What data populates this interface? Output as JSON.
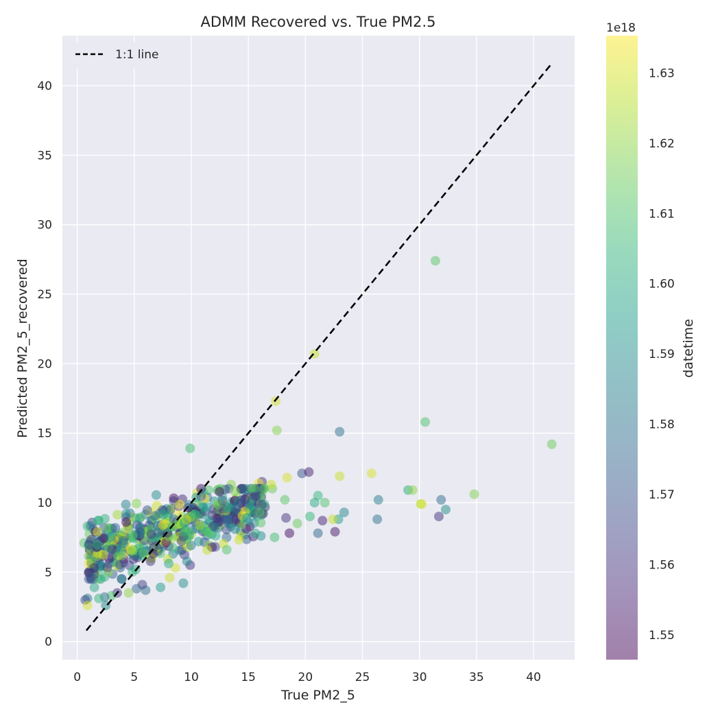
{
  "chart_data": {
    "type": "scatter",
    "title": "ADMM Recovered vs. True PM2.5",
    "xlabel": "True PM2_5",
    "ylabel": "Predicted PM2_5_recovered",
    "xlim": [
      -1.3,
      43.6
    ],
    "ylim": [
      -1.3,
      43.6
    ],
    "xticks": [
      0,
      5,
      10,
      15,
      20,
      25,
      30,
      35,
      40
    ],
    "yticks": [
      0,
      5,
      10,
      15,
      20,
      25,
      30,
      35,
      40
    ],
    "grid": true,
    "legend": {
      "placement": "top-left",
      "entries": [
        "1:1 line"
      ]
    },
    "reference_line": {
      "label": "1:1 line",
      "style": "dashed",
      "color": "#000000",
      "from": [
        0.8,
        0.8
      ],
      "to": [
        41.6,
        41.6
      ]
    },
    "colorbar": {
      "label": "datetime",
      "offset_text": "1e18",
      "min": 1.5465,
      "max": 1.6353,
      "ticks": [
        1.55,
        1.56,
        1.57,
        1.58,
        1.59,
        1.6,
        1.61,
        1.62,
        1.63
      ],
      "tick_labels": [
        "1.55",
        "1.56",
        "1.57",
        "1.58",
        "1.59",
        "1.60",
        "1.61",
        "1.62",
        "1.63"
      ],
      "colormap": "viridis",
      "alpha": 0.5
    },
    "points_note": "Notable individually readable points listed in 'points'; dense cluster summarized in 'cluster'.",
    "points": [
      [
        31.4,
        27.4,
        1.612
      ],
      [
        20.8,
        20.7,
        1.628
      ],
      [
        17.4,
        17.3,
        1.63
      ],
      [
        17.5,
        15.2,
        1.619
      ],
      [
        23.0,
        15.1,
        1.58
      ],
      [
        30.5,
        15.8,
        1.61
      ],
      [
        41.6,
        14.2,
        1.615
      ],
      [
        9.9,
        13.9,
        1.608
      ],
      [
        19.7,
        12.1,
        1.57
      ],
      [
        20.3,
        12.2,
        1.555
      ],
      [
        23.0,
        11.9,
        1.628
      ],
      [
        25.8,
        12.1,
        1.63
      ],
      [
        29.0,
        10.9,
        1.6
      ],
      [
        29.4,
        10.9,
        1.62
      ],
      [
        34.8,
        10.6,
        1.618
      ],
      [
        30.1,
        9.9,
        1.625
      ],
      [
        30.2,
        9.9,
        1.63
      ],
      [
        31.9,
        10.2,
        1.578
      ],
      [
        32.3,
        9.5,
        1.59
      ],
      [
        31.7,
        9.0,
        1.56
      ],
      [
        26.4,
        10.2,
        1.585
      ],
      [
        26.3,
        8.8,
        1.58
      ],
      [
        23.4,
        9.3,
        1.588
      ],
      [
        22.9,
        8.8,
        1.595
      ],
      [
        22.4,
        8.8,
        1.628
      ],
      [
        22.6,
        7.9,
        1.552
      ],
      [
        21.1,
        7.8,
        1.575
      ],
      [
        21.5,
        8.7,
        1.555
      ],
      [
        21.1,
        10.5,
        1.605
      ],
      [
        21.7,
        10.0,
        1.61
      ],
      [
        20.8,
        10.0,
        1.6
      ],
      [
        20.4,
        9.0,
        1.605
      ],
      [
        19.3,
        8.5,
        1.615
      ],
      [
        18.6,
        7.8,
        1.55
      ],
      [
        18.3,
        8.9,
        1.56
      ],
      [
        18.2,
        10.2,
        1.612
      ],
      [
        17.3,
        7.5,
        1.608
      ],
      [
        16.1,
        7.6,
        1.59
      ],
      [
        16.2,
        11.5,
        1.56
      ],
      [
        15.9,
        11.4,
        1.632
      ],
      [
        17.1,
        11.0,
        1.615
      ],
      [
        17.0,
        11.3,
        1.628
      ],
      [
        18.4,
        11.8,
        1.63
      ],
      [
        14.7,
        7.7,
        1.585
      ],
      [
        14.9,
        10.7,
        1.6
      ],
      [
        13.5,
        11.3,
        1.62
      ],
      [
        12.3,
        10.9,
        1.605
      ],
      [
        11.5,
        10.9,
        1.61
      ],
      [
        10.5,
        10.7,
        1.63
      ],
      [
        9.9,
        5.5,
        1.56
      ],
      [
        9.3,
        4.2,
        1.59
      ],
      [
        7.3,
        3.9,
        1.595
      ],
      [
        6.0,
        3.7,
        1.58
      ],
      [
        5.7,
        4.1,
        1.563
      ],
      [
        5.2,
        3.8,
        1.575
      ],
      [
        4.5,
        3.5,
        1.62
      ],
      [
        3.5,
        3.5,
        1.56
      ],
      [
        3.0,
        3.3,
        1.61
      ],
      [
        2.4,
        3.2,
        1.58
      ],
      [
        2.5,
        2.6,
        1.59
      ],
      [
        1.9,
        3.1,
        1.605
      ],
      [
        0.9,
        3.1,
        1.585
      ],
      [
        0.7,
        3.0,
        1.565
      ],
      [
        0.9,
        2.6,
        1.63
      ],
      [
        1.2,
        4.6,
        1.555
      ],
      [
        1.5,
        3.9,
        1.6
      ],
      [
        1.3,
        5.2,
        1.59
      ],
      [
        1.9,
        5.2,
        1.6
      ],
      [
        0.6,
        7.1,
        1.612
      ],
      [
        0.9,
        8.3,
        1.605
      ],
      [
        1.4,
        8.1,
        1.57
      ],
      [
        8.1,
        4.6,
        1.628
      ],
      [
        8.6,
        5.3,
        1.63
      ]
    ],
    "cluster": {
      "x_range": [
        1.0,
        16.5
      ],
      "y_range": [
        4.5,
        11.0
      ],
      "description": "dense cluster of several hundred points spanning all colormap values"
    }
  }
}
